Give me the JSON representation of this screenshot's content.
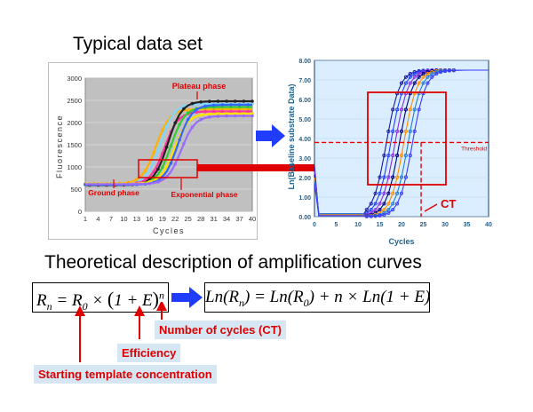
{
  "slide": {
    "title_top": "Typical data set",
    "title_bottom": "Theoretical description of amplification curves"
  },
  "left_chart": {
    "ylabel": "Fluorescence",
    "xlabel": "Cycles",
    "y_ticks": [
      "0",
      "500",
      "1000",
      "1500",
      "2000",
      "2500",
      "3000"
    ],
    "x_ticks": [
      "1",
      "4",
      "7",
      "10",
      "13",
      "16",
      "19",
      "22",
      "25",
      "28",
      "31",
      "34",
      "37",
      "40"
    ],
    "labels": {
      "plateau": "Plateau phase",
      "ground": "Ground phase",
      "exponential": "Exponential phase"
    }
  },
  "right_chart": {
    "ylabel": "Ln(Baseline substrate Data)",
    "xlabel": "Cycles",
    "y_ticks": [
      "0.00",
      "1.00",
      "2.00",
      "3.00",
      "4.00",
      "5.00",
      "6.00",
      "7.00",
      "8.00"
    ],
    "x_ticks": [
      "0",
      "5",
      "10",
      "15",
      "20",
      "25",
      "30",
      "35",
      "40"
    ],
    "threshold_label": "Threshold",
    "ct_label": "CT"
  },
  "equations": {
    "eq1": "R_n = R_0 × (1 + E)^n",
    "eq2": "Ln(R_n) = Ln(R_0) + n × Ln(1 + E)"
  },
  "callouts": {
    "cycles": "Number of cycles (CT)",
    "efficiency": "Efficiency",
    "starting": "Starting template concentration"
  },
  "colors": {
    "accent_red": "#e00000",
    "arrow_blue": "#1f3cff",
    "callout_bg": "#d7e6f3",
    "plot_gray": "#c0c0c0",
    "plot_lightblue": "#dbeeff"
  },
  "chart_data": [
    {
      "type": "line",
      "title": "",
      "xlabel": "Cycles",
      "ylabel": "Fluorescence",
      "xlim": [
        1,
        40
      ],
      "ylim": [
        0,
        3000
      ],
      "series_shape": "sigmoid",
      "series": [
        {
          "midpoint": 17.5,
          "baseline": 620,
          "plateau": 2300
        },
        {
          "midpoint": 18.5,
          "baseline": 600,
          "plateau": 2420
        },
        {
          "midpoint": 19.5,
          "baseline": 610,
          "plateau": 2250
        },
        {
          "midpoint": 20.3,
          "baseline": 590,
          "plateau": 2480
        },
        {
          "midpoint": 21.0,
          "baseline": 600,
          "plateau": 2350
        },
        {
          "midpoint": 21.8,
          "baseline": 620,
          "plateau": 2200
        },
        {
          "midpoint": 22.6,
          "baseline": 600,
          "plateau": 2400
        },
        {
          "midpoint": 23.4,
          "baseline": 610,
          "plateau": 2150
        }
      ]
    },
    {
      "type": "scatter",
      "title": "",
      "xlabel": "Cycles",
      "ylabel": "Ln(Baseline substrate Data)",
      "xlim": [
        0,
        40
      ],
      "ylim": [
        0,
        8
      ],
      "threshold": 3.8,
      "ct": 24.5,
      "series": [
        {
          "midpoint": 16.5,
          "plateau": 7.5
        },
        {
          "midpoint": 17.5,
          "plateau": 7.5
        },
        {
          "midpoint": 18.5,
          "plateau": 7.5
        },
        {
          "midpoint": 19.5,
          "plateau": 7.5
        },
        {
          "midpoint": 20.5,
          "plateau": 7.5
        },
        {
          "midpoint": 21.5,
          "plateau": 7.5
        },
        {
          "midpoint": 22.5,
          "plateau": 7.5
        }
      ]
    }
  ]
}
